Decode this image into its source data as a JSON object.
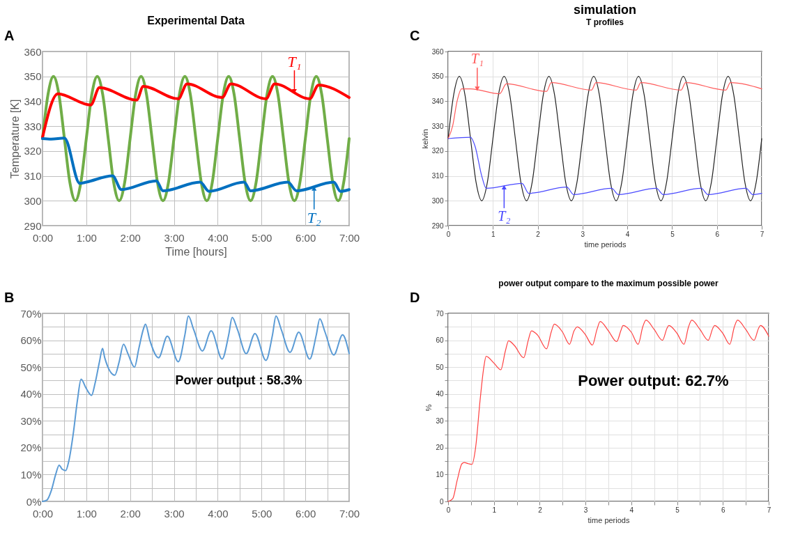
{
  "chart_data": [
    {
      "type": "line",
      "title": "Experimental Data",
      "xlabel": "Time [hours]",
      "ylabel": "Temperature [K]",
      "xlim": [
        0,
        7
      ],
      "ylim": [
        290,
        360
      ],
      "xticks": [
        {
          "value": 0,
          "label": "0:00"
        },
        {
          "value": 1,
          "label": "1:00"
        },
        {
          "value": 2,
          "label": "2:00"
        },
        {
          "value": 3,
          "label": "3:00"
        },
        {
          "value": 4,
          "label": "4:00"
        },
        {
          "value": 5,
          "label": "5:00"
        },
        {
          "value": 6,
          "label": "6:00"
        },
        {
          "value": 7,
          "label": "7:00"
        }
      ],
      "yticks": [
        290,
        300,
        310,
        320,
        330,
        340,
        350,
        360
      ],
      "grid": true,
      "series": [
        {
          "color": "#70ad47",
          "x": [
            0,
            0.125,
            0.25,
            0.375,
            0.5,
            0.625,
            0.75,
            0.875,
            1,
            1.125,
            1.25,
            1.375,
            1.5,
            1.625,
            1.75,
            1.875,
            2,
            2.125,
            2.25,
            2.375,
            2.5,
            2.625,
            2.75,
            2.875,
            3,
            3.125,
            3.25,
            3.375,
            3.5,
            3.625,
            3.75,
            3.875,
            4,
            4.125,
            4.25,
            4.375,
            4.5,
            4.625,
            4.75,
            4.875,
            5,
            5.125,
            5.25,
            5.375,
            5.5,
            5.625,
            5.75,
            5.875,
            6,
            6.125,
            6.25,
            6.375,
            6.5,
            6.625,
            6.75,
            6.875,
            7
          ],
          "values": [
            325,
            342.7,
            350,
            342.7,
            325,
            307.3,
            300,
            307.3,
            325,
            342.7,
            350,
            342.7,
            325,
            307.3,
            300,
            307.3,
            325,
            342.7,
            350,
            342.7,
            325,
            307.3,
            300,
            307.3,
            325,
            342.7,
            350,
            342.7,
            325,
            307.3,
            300,
            307.3,
            325,
            342.7,
            350,
            342.7,
            325,
            307.3,
            300,
            307.3,
            325,
            342.7,
            350,
            342.7,
            325,
            307.3,
            300,
            307.3,
            325,
            342.7,
            350,
            342.7,
            325,
            307.3,
            300,
            307.3,
            325
          ]
        },
        {
          "color": "#ff0000",
          "x": [
            0,
            0.35,
            1.1,
            1.3,
            2.15,
            2.3,
            3.1,
            3.3,
            4.1,
            4.3,
            5.1,
            5.3,
            6.1,
            6.3,
            7
          ],
          "values": [
            325.5,
            343,
            338.5,
            345.5,
            340.5,
            346,
            341,
            347,
            341.5,
            347,
            341,
            347,
            341,
            346.5,
            341.5
          ]
        },
        {
          "color": "#0070c0",
          "x": [
            0,
            0.2,
            0.5,
            0.85,
            1.0,
            1.6,
            1.8,
            2.6,
            2.75,
            3.6,
            3.8,
            4.6,
            4.75,
            5.6,
            5.8,
            6.65,
            6.8,
            7
          ],
          "values": [
            325,
            324.8,
            325.2,
            307,
            307.5,
            310,
            304.5,
            308,
            304,
            307.5,
            303.8,
            307.5,
            304,
            307.5,
            304,
            307.5,
            303.8,
            304.5
          ]
        }
      ],
      "annotations": [
        "A",
        {
          "text": "T₁",
          "x": 5.75,
          "y": 343.5
        },
        {
          "text": "T₂",
          "x": 6.2,
          "y": 305.5
        }
      ]
    },
    {
      "type": "line",
      "title": "simulation",
      "subtitle": "T profiles",
      "xlabel": "time periods",
      "ylabel": "kelvin",
      "xlim": [
        0,
        7
      ],
      "ylim": [
        290,
        360
      ],
      "xticks": [
        0,
        1,
        2,
        3,
        4,
        5,
        6,
        7
      ],
      "yticks": [
        290,
        300,
        310,
        320,
        330,
        340,
        350,
        360
      ],
      "grid": true,
      "series": [
        {
          "color": "#222222",
          "x": [
            0,
            0.125,
            0.25,
            0.375,
            0.5,
            0.625,
            0.75,
            0.875,
            1,
            1.125,
            1.25,
            1.375,
            1.5,
            1.625,
            1.75,
            1.875,
            2,
            2.125,
            2.25,
            2.375,
            2.5,
            2.625,
            2.75,
            2.875,
            3,
            3.125,
            3.25,
            3.375,
            3.5,
            3.625,
            3.75,
            3.875,
            4,
            4.125,
            4.25,
            4.375,
            4.5,
            4.625,
            4.75,
            4.875,
            5,
            5.125,
            5.25,
            5.375,
            5.5,
            5.625,
            5.75,
            5.875,
            6,
            6.125,
            6.25,
            6.375,
            6.5,
            6.625,
            6.75,
            6.875,
            7
          ],
          "values": [
            325,
            342.7,
            350,
            342.7,
            325,
            307.3,
            300,
            307.3,
            325,
            342.7,
            350,
            342.7,
            325,
            307.3,
            300,
            307.3,
            325,
            342.7,
            350,
            342.7,
            325,
            307.3,
            300,
            307.3,
            325,
            342.7,
            350,
            342.7,
            325,
            307.3,
            300,
            307.3,
            325,
            342.7,
            350,
            342.7,
            325,
            307.3,
            300,
            307.3,
            325,
            342.7,
            350,
            342.7,
            325,
            307.3,
            300,
            307.3,
            325,
            342.7,
            350,
            342.7,
            325,
            307.3,
            300,
            307.3,
            325
          ]
        },
        {
          "color": "#ff5a5a",
          "x": [
            0,
            0.1,
            0.2,
            0.3,
            0.5,
            1.15,
            1.3,
            2.2,
            2.3,
            3.2,
            3.3,
            4.2,
            4.3,
            5.2,
            5.3,
            6.2,
            6.3,
            7
          ],
          "values": [
            325,
            330,
            340,
            345,
            345,
            343,
            347,
            344,
            347.5,
            344.5,
            347.5,
            344.5,
            347.5,
            344.5,
            347.5,
            344.5,
            347.5,
            345
          ]
        },
        {
          "color": "#4a4aff",
          "x": [
            0,
            0.5,
            0.6,
            0.75,
            0.85,
            1.65,
            1.8,
            2.65,
            2.8,
            3.65,
            3.8,
            4.65,
            4.8,
            5.65,
            5.8,
            6.65,
            6.8,
            7
          ],
          "values": [
            325,
            325.5,
            322,
            310,
            305,
            307,
            303,
            305.5,
            302.5,
            305,
            302.5,
            305,
            302.5,
            305,
            302.5,
            305,
            302.5,
            303
          ]
        }
      ],
      "annotations": [
        "C",
        {
          "text": "T₁",
          "x": 0.65,
          "y": 344.5
        },
        {
          "text": "T₂",
          "x": 1.25,
          "y": 306
        }
      ]
    },
    {
      "type": "line",
      "xlim": [
        0,
        7
      ],
      "ylim": [
        0,
        70
      ],
      "xticks": [
        {
          "value": 0,
          "label": "0:00"
        },
        {
          "value": 0.5,
          "label": null
        },
        {
          "value": 1,
          "label": "1:00"
        },
        {
          "value": 1.5,
          "label": null
        },
        {
          "value": 2,
          "label": "2:00"
        },
        {
          "value": 2.5,
          "label": null
        },
        {
          "value": 3,
          "label": "3:00"
        },
        {
          "value": 3.5,
          "label": null
        },
        {
          "value": 4,
          "label": "4:00"
        },
        {
          "value": 4.5,
          "label": null
        },
        {
          "value": 5,
          "label": "5:00"
        },
        {
          "value": 5.5,
          "label": null
        },
        {
          "value": 6,
          "label": "6:00"
        },
        {
          "value": 6.5,
          "label": null
        },
        {
          "value": 7,
          "label": "7:00"
        }
      ],
      "yticks": [
        {
          "value": 0,
          "label": "0%"
        },
        {
          "value": 5,
          "label": null
        },
        {
          "value": 10,
          "label": "10%"
        },
        {
          "value": 15,
          "label": null
        },
        {
          "value": 20,
          "label": "20%"
        },
        {
          "value": 25,
          "label": null
        },
        {
          "value": 30,
          "label": "30%"
        },
        {
          "value": 35,
          "label": null
        },
        {
          "value": 40,
          "label": "40%"
        },
        {
          "value": 45,
          "label": null
        },
        {
          "value": 50,
          "label": "50%"
        },
        {
          "value": 55,
          "label": null
        },
        {
          "value": 60,
          "label": "60%"
        },
        {
          "value": 65,
          "label": null
        },
        {
          "value": 70,
          "label": "70%"
        }
      ],
      "grid": true,
      "series": [
        {
          "color": "#5b9bd5",
          "x": [
            0,
            0.1,
            0.2,
            0.3,
            0.38,
            0.45,
            0.53,
            0.6,
            0.7,
            0.8,
            0.88,
            1.0,
            1.12,
            1.2,
            1.3,
            1.37,
            1.42,
            1.65,
            1.75,
            1.85,
            1.95,
            2.1,
            2.2,
            2.3,
            2.35,
            2.45,
            2.65,
            2.85,
            3.1,
            3.25,
            3.33,
            3.45,
            3.65,
            3.85,
            4.1,
            4.25,
            4.33,
            4.45,
            4.65,
            4.85,
            5.1,
            5.25,
            5.33,
            5.45,
            5.65,
            5.85,
            6.1,
            6.25,
            6.33,
            6.45,
            6.65,
            6.85,
            7
          ],
          "values": [
            0,
            0.5,
            4,
            10,
            13.5,
            12,
            11.5,
            15,
            25,
            38,
            45.5,
            42,
            39.5,
            44,
            52,
            57,
            53.5,
            47,
            52,
            58.5,
            55,
            50,
            57,
            64,
            66,
            60,
            53.5,
            61.5,
            52,
            62,
            69,
            64,
            56,
            63.5,
            53,
            62,
            68.5,
            64,
            55,
            62.5,
            52.5,
            62,
            69,
            64,
            55.5,
            63,
            53,
            62,
            68,
            63,
            54.5,
            62,
            55
          ]
        }
      ],
      "annotations": [
        "B",
        "Power output : 58.3%"
      ]
    },
    {
      "type": "line",
      "title": "power output compare to the maximum possible power",
      "xlabel": "time periods",
      "ylabel": "%",
      "xlim": [
        0,
        7
      ],
      "ylim": [
        0,
        70
      ],
      "xticks": [
        0,
        {
          "value": 0.5,
          "label": null
        },
        1,
        {
          "value": 1.5,
          "label": null
        },
        2,
        {
          "value": 2.5,
          "label": null
        },
        3,
        {
          "value": 3.5,
          "label": null
        },
        4,
        {
          "value": 4.5,
          "label": null
        },
        5,
        {
          "value": 5.5,
          "label": null
        },
        6,
        {
          "value": 6.5,
          "label": null
        },
        7
      ],
      "yticks": [
        0,
        {
          "value": 5,
          "label": null
        },
        10,
        {
          "value": 15,
          "label": null
        },
        20,
        {
          "value": 25,
          "label": null
        },
        30,
        {
          "value": 35,
          "label": null
        },
        40,
        {
          "value": 45,
          "label": null
        },
        50,
        {
          "value": 55,
          "label": null
        },
        60,
        {
          "value": 65,
          "label": null
        },
        70
      ],
      "grid": true,
      "series": [
        {
          "color": "#ff4040",
          "x": [
            0,
            0.1,
            0.2,
            0.3,
            0.35,
            0.45,
            0.52,
            0.6,
            0.7,
            0.78,
            0.83,
            1.0,
            1.15,
            1.25,
            1.32,
            1.45,
            1.65,
            1.75,
            1.82,
            1.95,
            2.15,
            2.25,
            2.32,
            2.5,
            2.65,
            2.75,
            2.82,
            3.0,
            3.15,
            3.25,
            3.32,
            3.5,
            3.68,
            3.78,
            3.82,
            4.0,
            4.15,
            4.25,
            4.32,
            4.5,
            4.68,
            4.78,
            4.82,
            5.0,
            5.15,
            5.25,
            5.32,
            5.5,
            5.68,
            5.78,
            5.82,
            6.0,
            6.15,
            6.25,
            6.32,
            6.5,
            6.68,
            6.78,
            6.82,
            7
          ],
          "values": [
            0,
            1,
            8,
            14,
            14.5,
            14,
            13.8,
            20,
            38,
            50,
            54,
            51.5,
            49,
            56,
            59.8,
            58,
            53.5,
            60,
            63.5,
            62,
            56.8,
            63,
            66,
            63,
            58.5,
            63.5,
            65,
            62,
            58.2,
            64,
            67,
            63.5,
            59.5,
            64,
            65.5,
            63,
            58.5,
            65,
            67.5,
            64,
            60,
            64.5,
            65.5,
            62.5,
            58.5,
            65,
            67.5,
            64,
            60,
            64.5,
            65.5,
            62.5,
            58.5,
            65,
            67.5,
            64,
            60,
            64.5,
            65.5,
            61.5
          ]
        }
      ],
      "annotations": [
        "D",
        "Power output: 62.7%"
      ]
    }
  ]
}
